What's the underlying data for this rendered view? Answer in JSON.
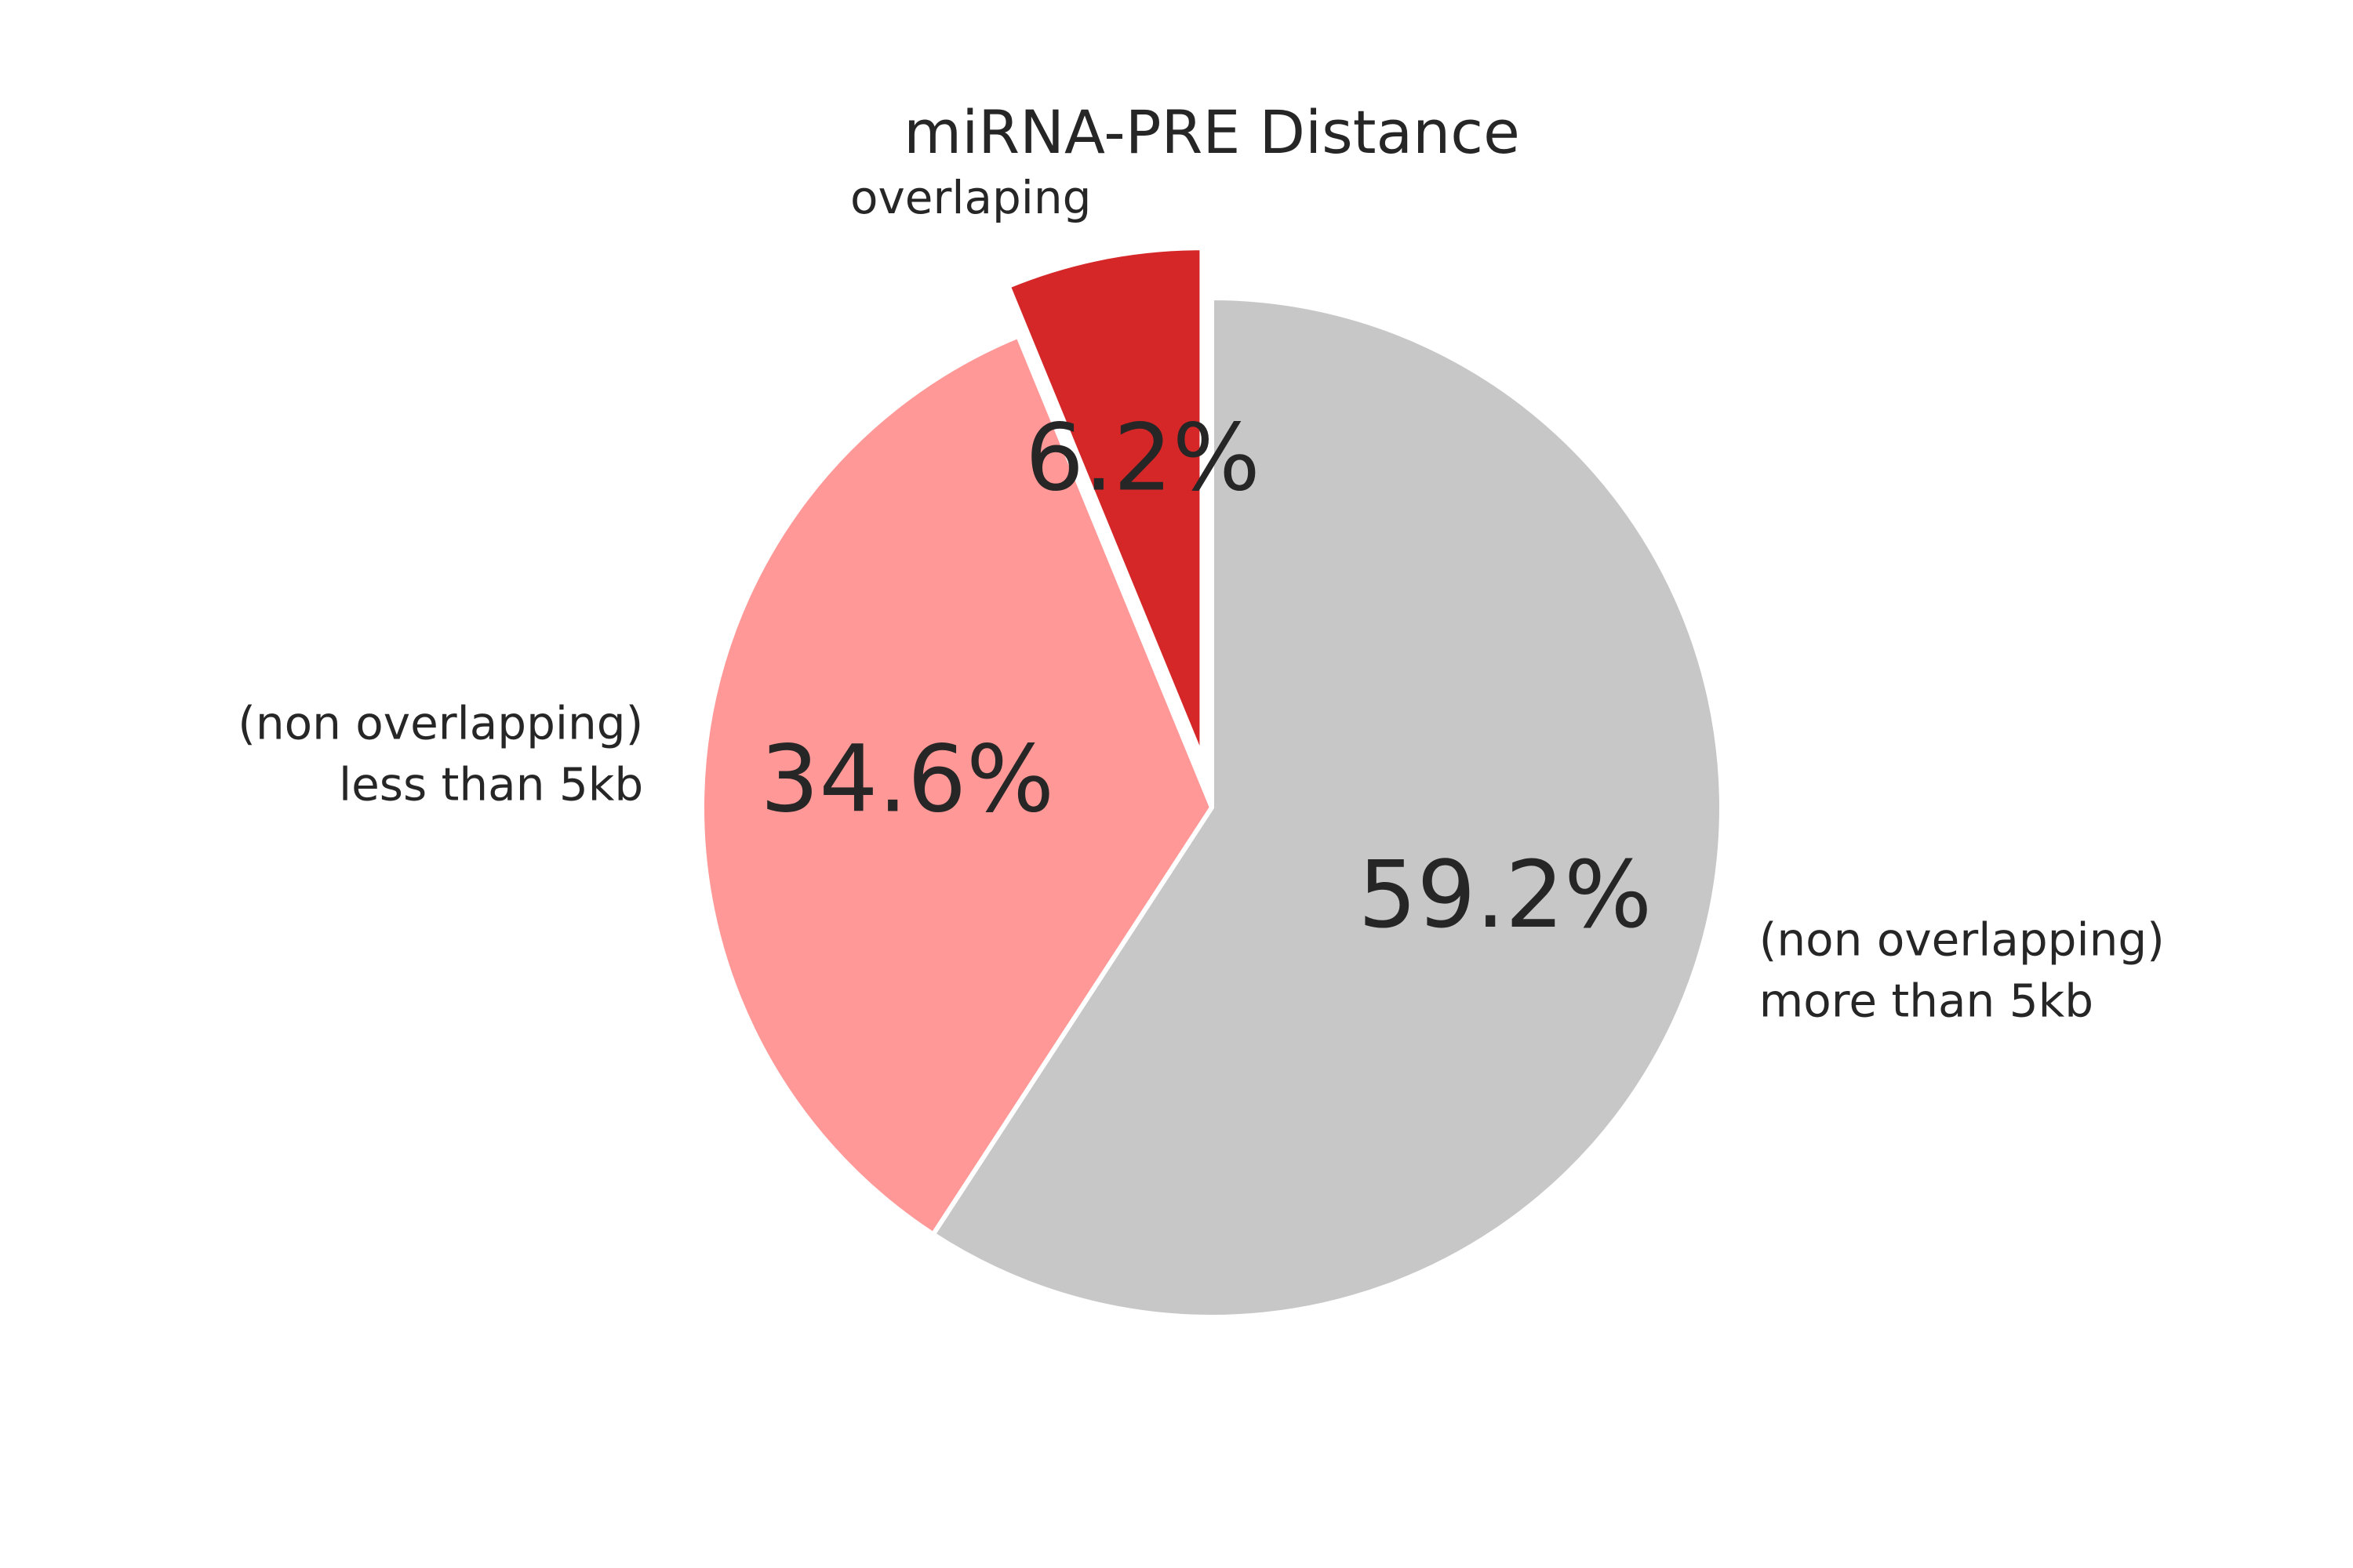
{
  "chart_data": {
    "type": "pie",
    "title": "miRNA-PRE Distance",
    "slices": [
      {
        "label_lines": [
          "overlaping"
        ],
        "value": 6.2,
        "value_label": "6.2%",
        "color": "#d62728",
        "exploded": true
      },
      {
        "label_lines": [
          "(non overlapping)",
          "less than 5kb"
        ],
        "value": 34.6,
        "value_label": "34.6%",
        "color": "#ff9896",
        "exploded": false
      },
      {
        "label_lines": [
          "(non overlapping)",
          "more than 5kb"
        ],
        "value": 59.2,
        "value_label": "59.2%",
        "color": "#c7c7c7",
        "exploded": false
      }
    ],
    "start_angle": "12 o'clock",
    "direction": "counterclockwise",
    "edge_color": "#ffffff",
    "legend": "none"
  }
}
